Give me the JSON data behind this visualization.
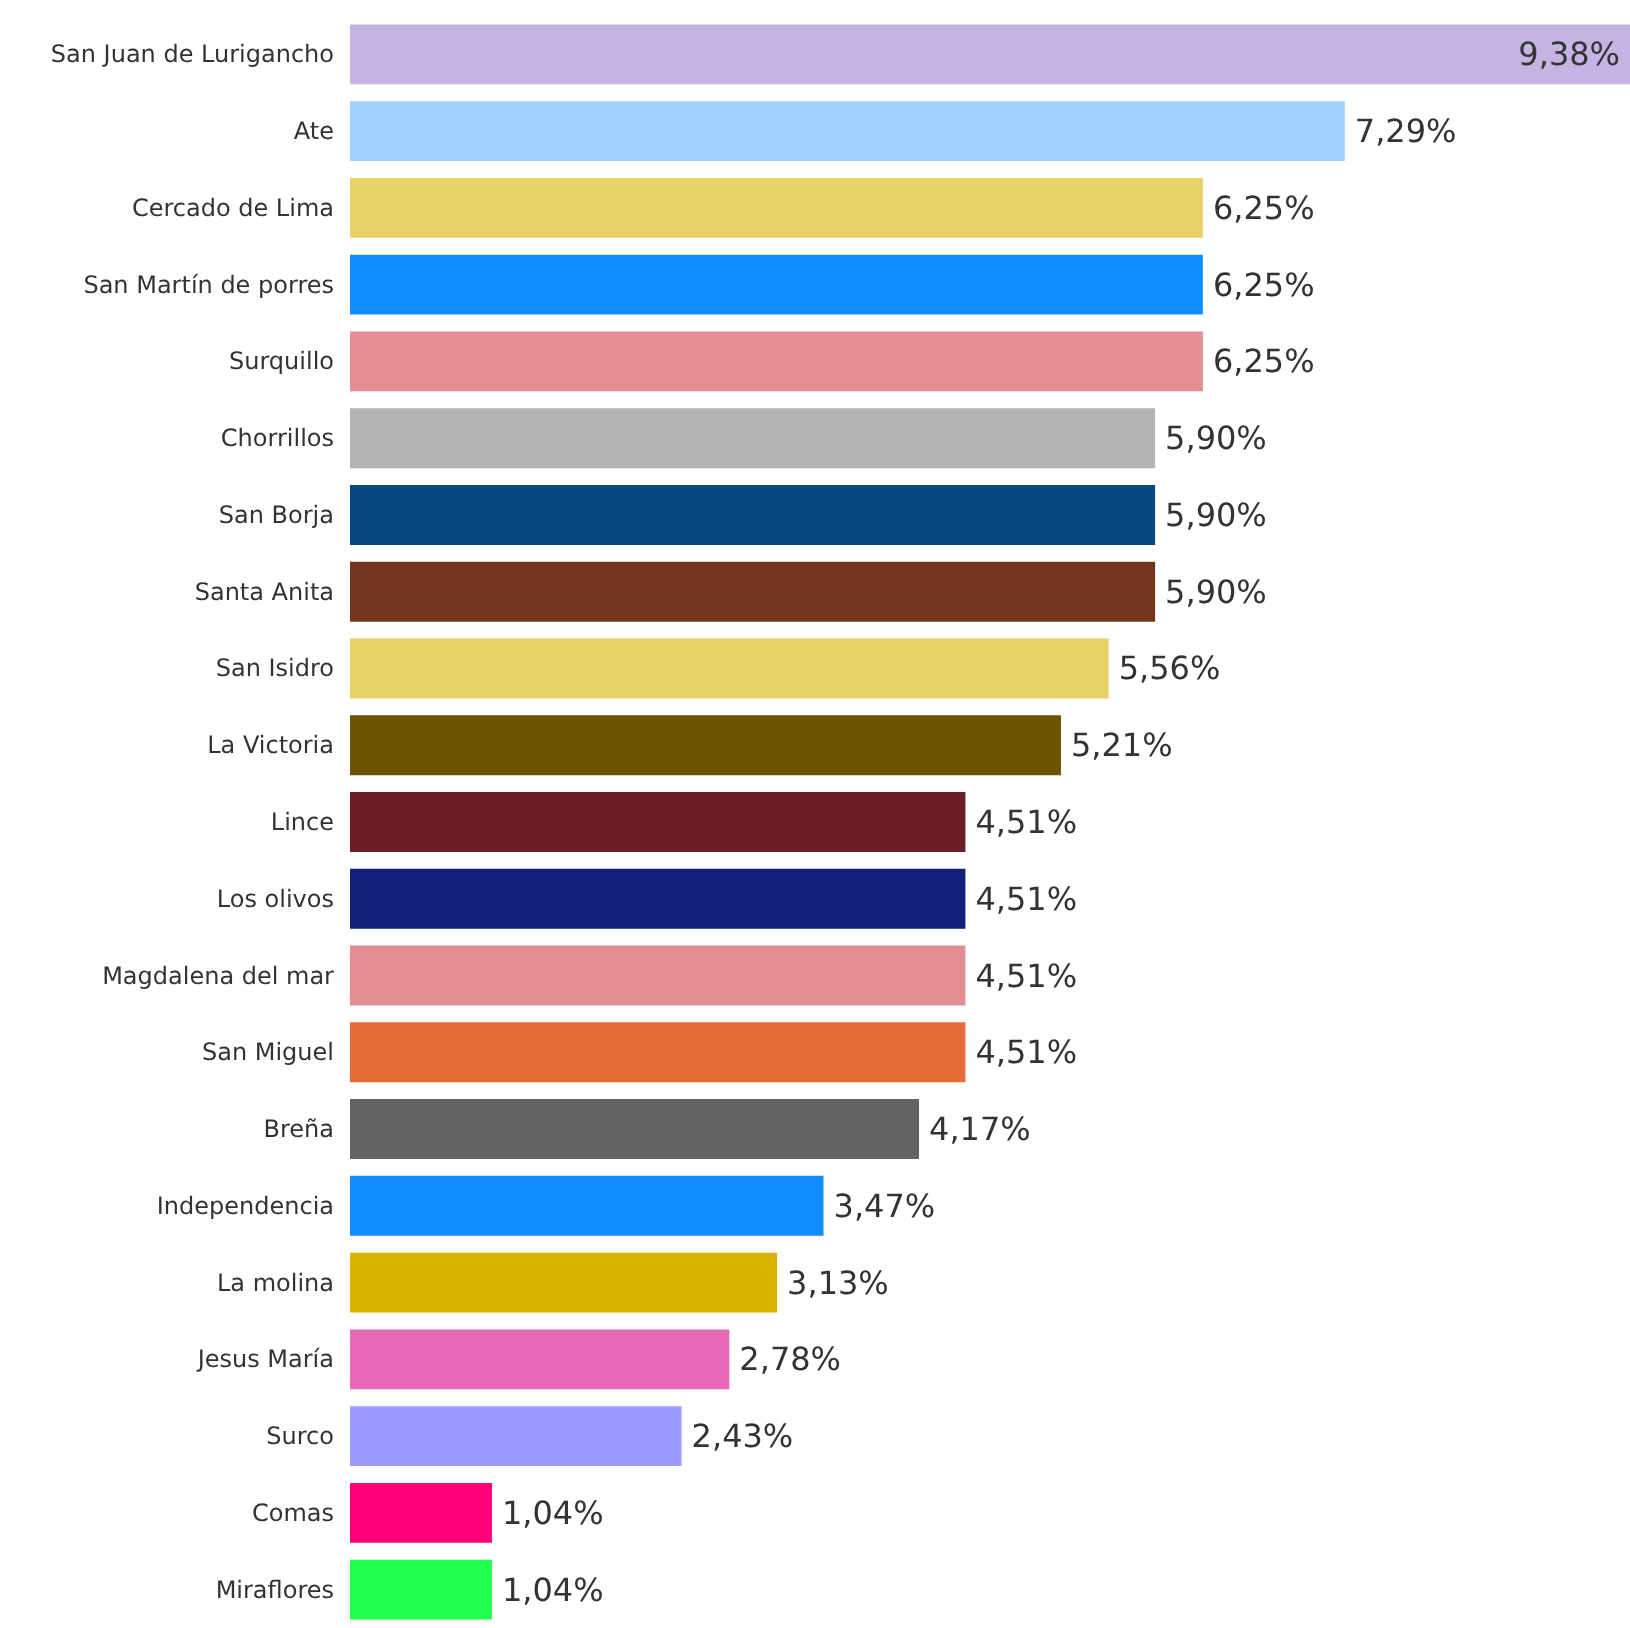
{
  "chart_data": {
    "type": "bar",
    "orientation": "horizontal",
    "categories": [
      "San Juan de Lurigancho",
      "Ate",
      "Cercado de Lima",
      "San Martín de porres",
      "Surquillo",
      "Chorrillos",
      "San Borja",
      "Santa Anita",
      "San Isidro",
      "La Victoria",
      "Lince",
      "Los olivos",
      "Magdalena del mar",
      "San Miguel",
      "Breña",
      "Independencia",
      "La molina",
      "Jesus María",
      "Surco",
      "Comas",
      "Miraflores"
    ],
    "values": [
      9.38,
      7.29,
      6.25,
      6.25,
      6.25,
      5.9,
      5.9,
      5.9,
      5.56,
      5.21,
      4.51,
      4.51,
      4.51,
      4.51,
      4.17,
      3.47,
      3.13,
      2.78,
      2.43,
      1.04,
      1.04
    ],
    "value_labels": [
      "9,38%",
      "7,29%",
      "6,25%",
      "6,25%",
      "6,25%",
      "5,90%",
      "5,90%",
      "5,90%",
      "5,56%",
      "5,21%",
      "4,51%",
      "4,51%",
      "4,51%",
      "4,51%",
      "4,17%",
      "3,47%",
      "3,13%",
      "2,78%",
      "2,43%",
      "1,04%",
      "1,04%"
    ],
    "colors": [
      "#c5b4e3",
      "#a0d1ff",
      "#e8d166",
      "#118dff",
      "#e48e93",
      "#b3b3b3",
      "#094780",
      "#74351f",
      "#e8d166",
      "#6b5300",
      "#6b2027",
      "#12207a",
      "#e48e93",
      "#e66c37",
      "#636363",
      "#118dff",
      "#d9b300",
      "#e66ab7",
      "#9e9aff",
      "#ff0078",
      "#21ff4c"
    ]
  }
}
